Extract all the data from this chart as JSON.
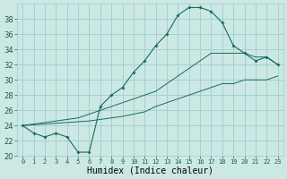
{
  "xlabel": "Humidex (Indice chaleur)",
  "background_color": "#cce8e4",
  "grid_color": "#9ececa",
  "line_color": "#1a6b5a",
  "hours": [
    0,
    1,
    2,
    3,
    4,
    5,
    6,
    7,
    8,
    9,
    10,
    11,
    12,
    13,
    14,
    15,
    16,
    17,
    18,
    19,
    20,
    21,
    22,
    23
  ],
  "main_line": [
    24,
    23,
    22.5,
    23,
    22.5,
    20.5,
    20.5,
    26.5,
    28,
    29,
    31,
    32.5,
    34.5,
    36,
    38.5,
    39.5,
    39.5,
    39,
    37.5,
    34.5,
    33.5,
    32.5,
    33,
    32
  ],
  "upper_line": [
    24,
    24.2,
    24.4,
    24.6,
    24.8,
    25.0,
    25.5,
    26.0,
    26.5,
    27.0,
    27.5,
    28.0,
    28.5,
    29.5,
    30.5,
    31.5,
    32.5,
    33.5,
    33.5,
    33.5,
    33.5,
    33.0,
    33.0,
    32.0
  ],
  "lower_line": [
    24,
    24.1,
    24.2,
    24.3,
    24.4,
    24.5,
    24.6,
    24.8,
    25.0,
    25.2,
    25.5,
    25.8,
    26.5,
    27.0,
    27.5,
    28.0,
    28.5,
    29.0,
    29.5,
    29.5,
    30.0,
    30.0,
    30.0,
    30.5
  ],
  "ylim": [
    20,
    40
  ],
  "yticks": [
    20,
    22,
    24,
    26,
    28,
    30,
    32,
    34,
    36,
    38
  ],
  "xlim": [
    -0.5,
    23.5
  ]
}
